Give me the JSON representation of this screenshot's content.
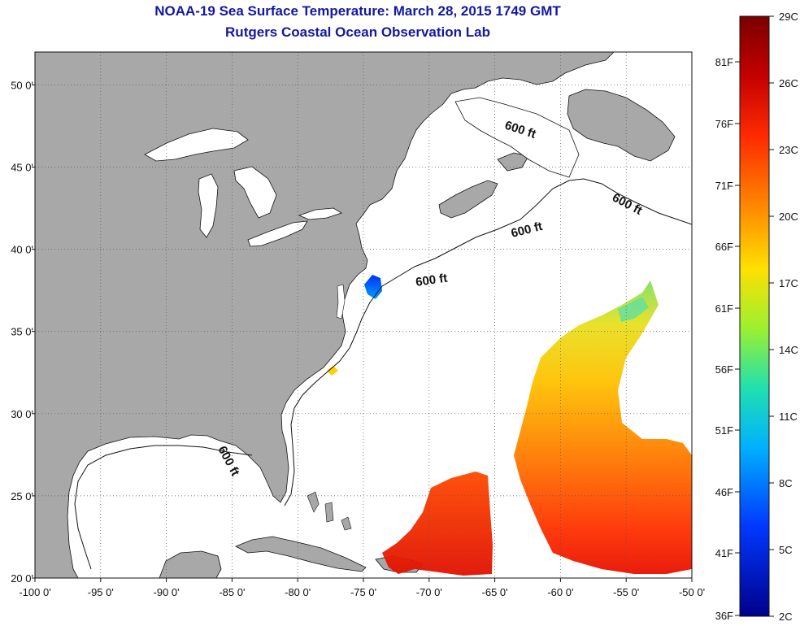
{
  "title": "NOAA-19 Sea Surface Temperature:  March 28, 2015 1749 GMT",
  "subtitle": "Rutgers Coastal Ocean Observation Lab",
  "map": {
    "lon_range": [
      -100,
      -50
    ],
    "lat_range": [
      20,
      52
    ],
    "lon_ticks": [
      {
        "value": -100,
        "label": "-100 0'"
      },
      {
        "value": -95,
        "label": "-95 0'"
      },
      {
        "value": -90,
        "label": "-90 0'"
      },
      {
        "value": -85,
        "label": "-85 0'"
      },
      {
        "value": -80,
        "label": "-80 0'"
      },
      {
        "value": -75,
        "label": "-75 0'"
      },
      {
        "value": -70,
        "label": "-70 0'"
      },
      {
        "value": -65,
        "label": "-65 0'"
      },
      {
        "value": -60,
        "label": "-60 0'"
      },
      {
        "value": -55,
        "label": "-55 0'"
      },
      {
        "value": -50,
        "label": "-50 0'"
      }
    ],
    "lat_ticks": [
      {
        "value": 20,
        "label": "20 0'"
      },
      {
        "value": 25,
        "label": "25 0'"
      },
      {
        "value": 30,
        "label": "30 0'"
      },
      {
        "value": 35,
        "label": "35 0'"
      },
      {
        "value": 40,
        "label": "40 0'"
      },
      {
        "value": 45,
        "label": "45 0'"
      },
      {
        "value": 50,
        "label": "50 0'"
      }
    ],
    "isobath_label": "600 ft",
    "land_color": "#a8a8a8",
    "grid": true
  },
  "colorbar": {
    "celsius_ticks": [
      "29C",
      "26C",
      "23C",
      "20C",
      "17C",
      "14C",
      "11C",
      "8C",
      "5C",
      "2C"
    ],
    "fahrenheit_ticks": [
      "81F",
      "76F",
      "71F",
      "66F",
      "61F",
      "56F",
      "51F",
      "46F",
      "41F",
      "36F"
    ],
    "colors": [
      "#7a0000",
      "#d10000",
      "#ff4000",
      "#ff9900",
      "#ffee00",
      "#9cf030",
      "#20e0c0",
      "#00a8ff",
      "#0040ff",
      "#00008c"
    ]
  }
}
